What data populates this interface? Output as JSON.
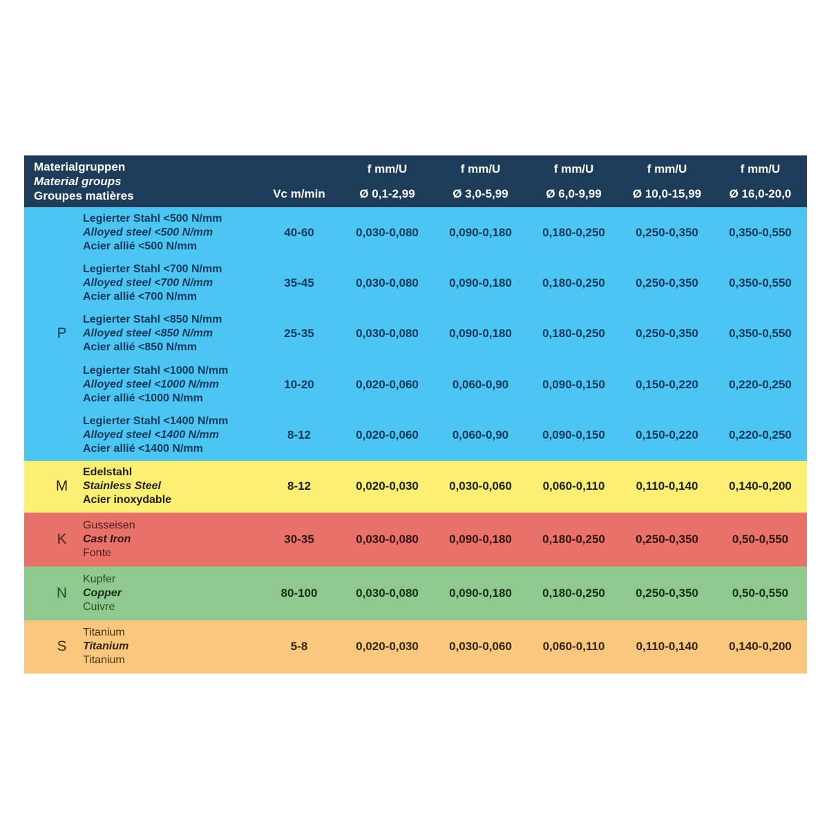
{
  "colors": {
    "header_bg": "#1c3c5a",
    "header_text": "#ffffff",
    "group_P_bg": "#4dc5f2",
    "group_M_bg": "#fbef74",
    "group_K_bg": "#e87169",
    "group_N_bg": "#90c98e",
    "group_S_bg": "#f9c77d"
  },
  "table": {
    "header": {
      "material_lines": [
        {
          "lang": "de",
          "text": "Materialgruppen"
        },
        {
          "lang": "en",
          "text": "Material groups"
        },
        {
          "lang": "fr",
          "text": "Groupes matières"
        }
      ],
      "vc_label": "Vc m/min",
      "feed_columns": [
        {
          "unit": "f mm/U",
          "diameter": "Ø 0,1-2,99"
        },
        {
          "unit": "f mm/U",
          "diameter": "Ø 3,0-5,99"
        },
        {
          "unit": "f mm/U",
          "diameter": "Ø 6,0-9,99"
        },
        {
          "unit": "f mm/U",
          "diameter": "Ø 10,0-15,99"
        },
        {
          "unit": "f mm/U",
          "diameter": "Ø 16,0-20,0"
        }
      ]
    },
    "groups": [
      {
        "id": "P",
        "letter": "P",
        "rows": [
          {
            "names": {
              "de": "Legierter Stahl <500 N/mm",
              "en": "Alloyed steel <500 N/mm",
              "fr": "Acier allié <500 N/mm"
            },
            "vc": "40-60",
            "f": [
              "0,030-0,080",
              "0,090-0,180",
              "0,180-0,250",
              "0,250-0,350",
              "0,350-0,550"
            ]
          },
          {
            "names": {
              "de": "Legierter Stahl <700 N/mm",
              "en": "Alloyed steel <700 N/mm",
              "fr": "Acier allié <700 N/mm"
            },
            "vc": "35-45",
            "f": [
              "0,030-0,080",
              "0,090-0,180",
              "0,180-0,250",
              "0,250-0,350",
              "0,350-0,550"
            ]
          },
          {
            "names": {
              "de": "Legierter Stahl <850 N/mm",
              "en": "Alloyed steel <850 N/mm",
              "fr": "Acier allié <850 N/mm"
            },
            "vc": "25-35",
            "f": [
              "0,030-0,080",
              "0,090-0,180",
              "0,180-0,250",
              "0,250-0,350",
              "0,350-0,550"
            ]
          },
          {
            "names": {
              "de": "Legierter Stahl <1000 N/mm",
              "en": "Alloyed steel <1000 N/mm",
              "fr": "Acier allié <1000 N/mm"
            },
            "vc": "10-20",
            "f": [
              "0,020-0,060",
              "0,060-0,90",
              "0,090-0,150",
              "0,150-0,220",
              "0,220-0,250"
            ]
          },
          {
            "names": {
              "de": "Legierter Stahl <1400 N/mm",
              "en": "Alloyed steel <1400 N/mm",
              "fr": "Acier allié <1400 N/mm"
            },
            "vc": "8-12",
            "f": [
              "0,020-0,060",
              "0,060-0,90",
              "0,090-0,150",
              "0,150-0,220",
              "0,220-0,250"
            ]
          }
        ]
      },
      {
        "id": "M",
        "letter": "M",
        "rows": [
          {
            "names": {
              "de": "Edelstahl",
              "en": "Stainless Steel",
              "fr": "Acier inoxydable"
            },
            "vc": "8-12",
            "f": [
              "0,020-0,030",
              "0,030-0,060",
              "0,060-0,110",
              "0,110-0,140",
              "0,140-0,200"
            ]
          }
        ]
      },
      {
        "id": "K",
        "letter": "K",
        "rows": [
          {
            "names": {
              "de": "Gusseisen",
              "en": "Cast Iron",
              "fr": "Fonte"
            },
            "vc": "30-35",
            "f": [
              "0,030-0,080",
              "0,090-0,180",
              "0,180-0,250",
              "0,250-0,350",
              "0,50-0,550"
            ]
          }
        ]
      },
      {
        "id": "N",
        "letter": "N",
        "rows": [
          {
            "names": {
              "de": "Kupfer",
              "en": "Copper",
              "fr": "Cuivre"
            },
            "vc": "80-100",
            "f": [
              "0,030-0,080",
              "0,090-0,180",
              "0,180-0,250",
              "0,250-0,350",
              "0,50-0,550"
            ]
          }
        ]
      },
      {
        "id": "S",
        "letter": "S",
        "rows": [
          {
            "names": {
              "de": "Titanium",
              "en": "Titanium",
              "fr": "Titanium"
            },
            "vc": "5-8",
            "f": [
              "0,020-0,030",
              "0,030-0,060",
              "0,060-0,110",
              "0,110-0,140",
              "0,140-0,200"
            ]
          }
        ]
      }
    ]
  }
}
